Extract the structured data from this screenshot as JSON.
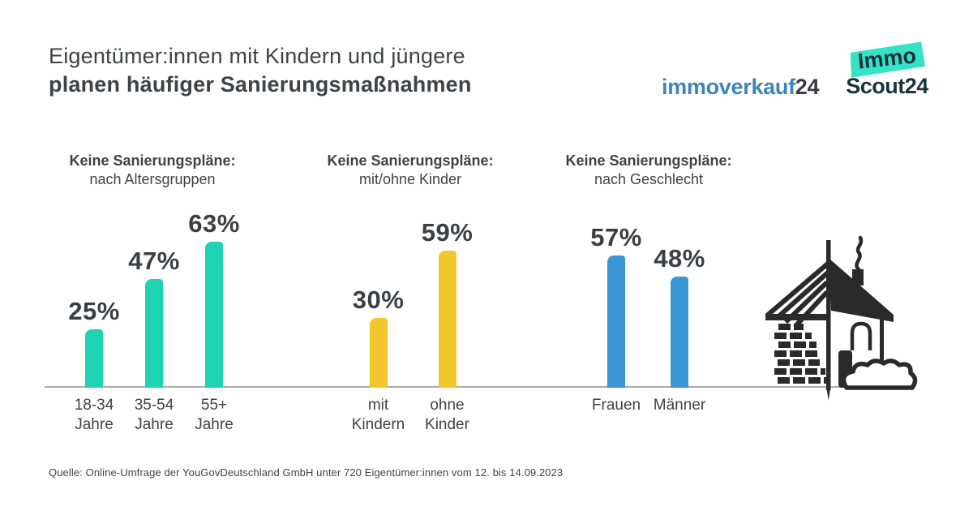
{
  "header": {
    "title_line1": "Eigentümer:innen mit Kindern und jüngere",
    "title_line2": "planen häufiger Sanierungsmaßnahmen"
  },
  "logos": {
    "immoverkauf24": {
      "name_part": "immoverkauf",
      "number_part": "24",
      "name_color": "#3d84ba",
      "number_color": "#3a3e43"
    },
    "immoscout24": {
      "badge_text": "Immo",
      "scout_text": "Scout24",
      "badge_color": "#35e2c6",
      "text_color": "#17333c"
    }
  },
  "chart_data": [
    {
      "type": "bar",
      "title_line1": "Keine Sanierungspläne:",
      "title_line2": "nach Altersgruppen",
      "categories": [
        "18-34 Jahre",
        "35-54 Jahre",
        "55+ Jahre"
      ],
      "category_lines": [
        [
          "18-34",
          "Jahre"
        ],
        [
          "35-54",
          "Jahre"
        ],
        [
          "55+",
          "Jahre"
        ]
      ],
      "values": [
        25,
        47,
        63
      ],
      "value_suffix": "%",
      "color": "#1ed3b1",
      "ylim": [
        0,
        70
      ],
      "grid": false,
      "axis_color": "#ababab"
    },
    {
      "type": "bar",
      "title_line1": "Keine Sanierungspläne:",
      "title_line2": "mit/ohne Kinder",
      "categories": [
        "mit Kindern",
        "ohne Kinder"
      ],
      "category_lines": [
        [
          "mit",
          "Kindern"
        ],
        [
          "ohne",
          "Kinder"
        ]
      ],
      "values": [
        30,
        59
      ],
      "value_suffix": "%",
      "color": "#f0c82d",
      "ylim": [
        0,
        70
      ],
      "grid": false,
      "axis_color": "#ababab"
    },
    {
      "type": "bar",
      "title_line1": "Keine Sanierungspläne:",
      "title_line2": "nach Geschlecht",
      "categories": [
        "Frauen",
        "Männer"
      ],
      "category_lines": [
        [
          "Frauen"
        ],
        [
          "Männer"
        ]
      ],
      "values": [
        57,
        48
      ],
      "value_suffix": "%",
      "color": "#3a96d4",
      "ylim": [
        0,
        70
      ],
      "grid": false,
      "axis_color": "#ababab"
    }
  ],
  "illustration": {
    "name": "house-renovation-illustration"
  },
  "footer": {
    "source": "Quelle: Online-Umfrage der YouGovDeutschland GmbH unter 720 Eigentümer:innen vom 12. bis 14.09.2023"
  }
}
